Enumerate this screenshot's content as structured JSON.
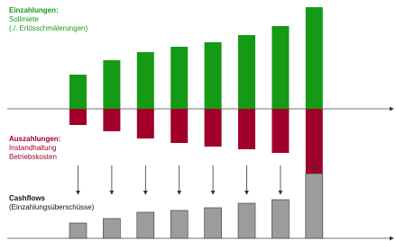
{
  "chart_data": {
    "type": "bar",
    "categories": [
      null,
      null,
      null,
      null,
      null,
      null,
      null,
      null
    ],
    "series": [
      {
        "name": "Einzahlungen:",
        "lines": [
          "Sollmiete",
          "(./. Erlösschmälerungen)"
        ],
        "color": "#149a14",
        "values": [
          38,
          54,
          63,
          69,
          74,
          82,
          92,
          113
        ]
      },
      {
        "name": "Auszahlungen:",
        "lines": [
          "Instandhaltung",
          "Betriebskosten"
        ],
        "color": "#a1002a",
        "values": [
          18,
          25,
          33,
          38,
          42,
          45,
          49,
          79
        ]
      },
      {
        "name": "Cashflows",
        "lines": [
          "(Einzahlungsüberschüsse)"
        ],
        "color": "#9c9c9c",
        "values": [
          17,
          22,
          29,
          31,
          34,
          39,
          43,
          72
        ]
      }
    ]
  }
}
